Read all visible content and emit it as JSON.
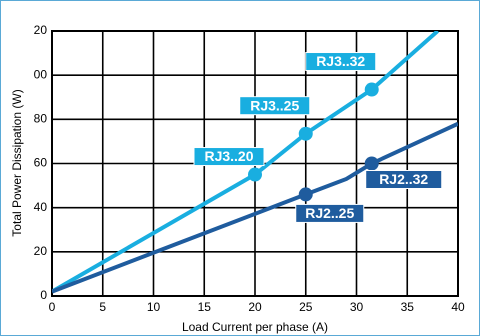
{
  "chart_data": {
    "type": "line",
    "xlabel": "Load Current per phase (A)",
    "ylabel": "Total Power Dissipation (W)",
    "xlim": [
      0,
      40
    ],
    "ylim": [
      0,
      120
    ],
    "xticks": [
      0,
      5,
      10,
      15,
      20,
      25,
      30,
      35,
      40
    ],
    "yticks": [
      0,
      20,
      40,
      60,
      80,
      {
        "value": 100,
        "label": "00"
      },
      {
        "value": 120,
        "label": "20"
      }
    ],
    "grid": true,
    "series": [
      {
        "color": "#19aee0",
        "x": [
          0,
          20,
          25,
          31.5,
          38
        ],
        "values": [
          2,
          55,
          73.5,
          93.5,
          120
        ],
        "markers": [
          {
            "x": 20,
            "y": 55,
            "label": "RJ3..20"
          },
          {
            "x": 25,
            "y": 73.5,
            "label": "RJ3..25"
          },
          {
            "x": 31.5,
            "y": 93.5,
            "label": "RJ3..32"
          }
        ]
      },
      {
        "color": "#1f5c9e",
        "x": [
          0,
          25,
          29,
          31.5,
          40
        ],
        "values": [
          2,
          46,
          53,
          60,
          78
        ],
        "markers": [
          {
            "x": 25,
            "y": 46,
            "label": "RJ2..25"
          },
          {
            "x": 31.5,
            "y": 60,
            "label": "RJ2..32"
          }
        ]
      }
    ]
  }
}
